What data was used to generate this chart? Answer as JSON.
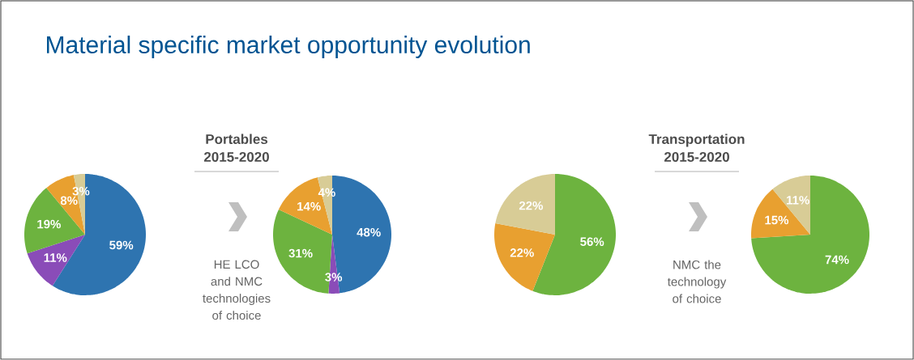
{
  "chart_data": [
    {
      "type": "pie",
      "title": "Material specific market opportunity evolution",
      "categories": [
        null,
        null,
        null,
        null,
        null
      ],
      "values": [
        59,
        11,
        19,
        8,
        3
      ],
      "colors": [
        "#2e74b0",
        "#8a4cb8",
        "#6db33f",
        "#e8a030",
        "#d8cc96"
      ],
      "value_labels": [
        "59%",
        "11%",
        "19%",
        "8%",
        "3%"
      ],
      "annotations": [
        "Portables 2015-2020",
        "HE LCO and NMC technologies of choice"
      ]
    },
    {
      "type": "pie",
      "categories": [
        null,
        null,
        null,
        null,
        null
      ],
      "values": [
        48,
        3,
        31,
        14,
        4
      ],
      "colors": [
        "#2e74b0",
        "#8a4cb8",
        "#6db33f",
        "#e8a030",
        "#d8cc96"
      ],
      "value_labels": [
        "48%",
        "3%",
        "31%",
        "14%",
        "4%"
      ]
    },
    {
      "type": "pie",
      "categories": [
        null,
        null,
        null
      ],
      "values": [
        56,
        22,
        22
      ],
      "colors": [
        "#6db33f",
        "#e8a030",
        "#d8cc96"
      ],
      "value_labels": [
        "56%",
        "22%",
        "22%"
      ],
      "annotations": [
        "Transportation 2015-2020",
        "NMC the technology of choice"
      ]
    },
    {
      "type": "pie",
      "categories": [
        null,
        null,
        null
      ],
      "values": [
        74,
        15,
        11
      ],
      "colors": [
        "#6db33f",
        "#e8a030",
        "#d8cc96"
      ],
      "value_labels": [
        "74%",
        "15%",
        "11%"
      ]
    }
  ]
}
